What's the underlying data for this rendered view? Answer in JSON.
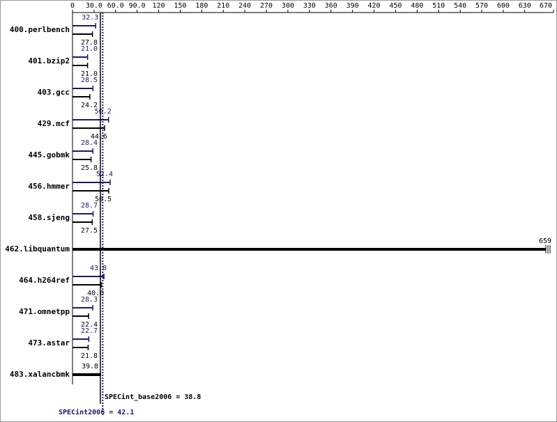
{
  "chart_data": {
    "type": "spec-bar",
    "xlim": [
      0,
      670
    ],
    "xticks": [
      0,
      {
        "value": 30,
        "label": "30.0"
      },
      {
        "value": 60,
        "label": "60.0"
      },
      {
        "value": 90,
        "label": "90.0"
      },
      120,
      150,
      180,
      210,
      240,
      270,
      300,
      330,
      360,
      390,
      420,
      450,
      480,
      510,
      540,
      570,
      600,
      630,
      670
    ],
    "peak_color": "#191970",
    "base_color": "#000000",
    "benchmarks": [
      {
        "name": "400.perlbench",
        "peak": 32.3,
        "base": 27.8
      },
      {
        "name": "401.bzip2",
        "peak": 21.0,
        "peak_label": "21.0",
        "base": 21.0,
        "base_label": "21.0"
      },
      {
        "name": "403.gcc",
        "peak": 28.5,
        "base": 24.2
      },
      {
        "name": "429.mcf",
        "peak": 50.2,
        "base": 44.6
      },
      {
        "name": "445.gobmk",
        "peak": 28.4,
        "base": 25.8
      },
      {
        "name": "456.hmmer",
        "peak": 52.4,
        "base": 50.5
      },
      {
        "name": "458.sjeng",
        "peak": 28.7,
        "base": 27.5
      },
      {
        "name": "462.libquantum",
        "value": 659
      },
      {
        "name": "464.h264ref",
        "peak": 43.8,
        "base": 40.0,
        "base_label": "40.0"
      },
      {
        "name": "471.omnetpp",
        "peak": 28.3,
        "base": 22.4
      },
      {
        "name": "473.astar",
        "peak": 22.7,
        "base": 21.8
      },
      {
        "name": "483.xalancbmk",
        "value": 39.8
      }
    ],
    "base_metric": {
      "label": "SPECint_base2006 = 38.8",
      "value": 38.8
    },
    "peak_metric": {
      "label": "SPECint2006 = 42.1",
      "value": 42.1
    }
  }
}
